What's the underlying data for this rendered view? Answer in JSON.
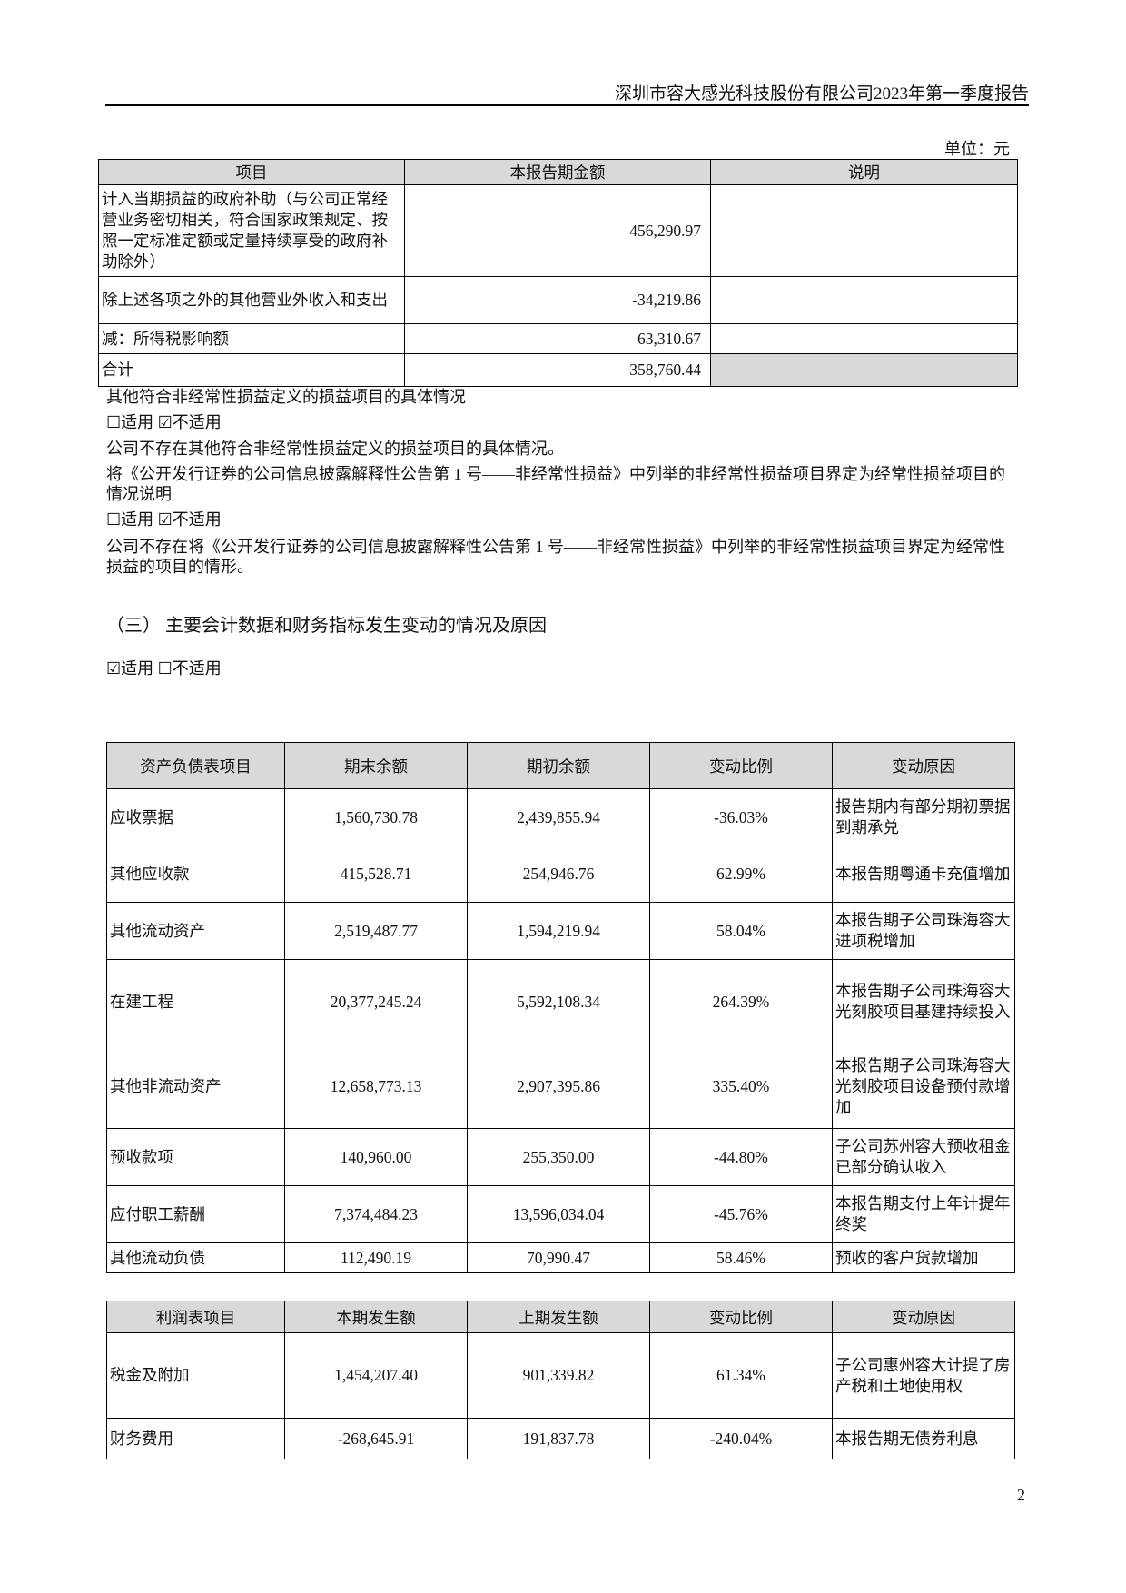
{
  "header": {
    "title": "深圳市容大感光科技股份有限公司2023年第一季度报告"
  },
  "unit_label": "单位：元",
  "nonrecurring_table": {
    "headers": [
      "项目",
      "本报告期金额",
      "说明"
    ],
    "rows": [
      {
        "item": "计入当期损益的政府补助（与公司正常经营业务密切相关，符合国家政策规定、按照一定标准定额或定量持续享受的政府补助除外）",
        "amount": "456,290.97",
        "note": ""
      },
      {
        "item": "除上述各项之外的其他营业外收入和支出",
        "amount": "-34,219.86",
        "note": ""
      },
      {
        "item": "减：所得税影响额",
        "amount": "63,310.67",
        "note": ""
      },
      {
        "item": "合计",
        "amount": "358,760.44",
        "note": ""
      }
    ]
  },
  "paragraphs": {
    "p1": "其他符合非经常性损益定义的损益项目的具体情况",
    "check1": "☐适用 ☑不适用",
    "p2": "公司不存在其他符合非经常性损益定义的损益项目的具体情况。",
    "p3": "将《公开发行证券的公司信息披露解释性公告第 1 号——非经常性损益》中列举的非经常性损益项目界定为经常性损益项目的情况说明",
    "check2": "☐适用 ☑不适用",
    "p4": "公司不存在将《公开发行证券的公司信息披露解释性公告第 1 号——非经常性损益》中列举的非经常性损益项目界定为经常性损益的项目的情形。",
    "section_title": "（三）  主要会计数据和财务指标发生变动的情况及原因",
    "check3": "☑适用 ☐不适用"
  },
  "balance_table": {
    "headers": [
      "资产负债表项目",
      "期末余额",
      "期初余额",
      "变动比例",
      "变动原因"
    ],
    "rows": [
      {
        "item": "应收票据",
        "end": "1,560,730.78",
        "begin": "2,439,855.94",
        "ratio": "-36.03%",
        "reason": "报告期内有部分期初票据到期承兑"
      },
      {
        "item": "其他应收款",
        "end": "415,528.71",
        "begin": "254,946.76",
        "ratio": "62.99%",
        "reason": "本报告期粤通卡充值增加"
      },
      {
        "item": "其他流动资产",
        "end": "2,519,487.77",
        "begin": "1,594,219.94",
        "ratio": "58.04%",
        "reason": "本报告期子公司珠海容大进项税增加"
      },
      {
        "item": "在建工程",
        "end": "20,377,245.24",
        "begin": "5,592,108.34",
        "ratio": "264.39%",
        "reason": "本报告期子公司珠海容大光刻胶项目基建持续投入"
      },
      {
        "item": "其他非流动资产",
        "end": "12,658,773.13",
        "begin": "2,907,395.86",
        "ratio": "335.40%",
        "reason": "本报告期子公司珠海容大光刻胶项目设备预付款增加"
      },
      {
        "item": "预收款项",
        "end": "140,960.00",
        "begin": "255,350.00",
        "ratio": "-44.80%",
        "reason": "子公司苏州容大预收租金已部分确认收入"
      },
      {
        "item": "应付职工薪酬",
        "end": "7,374,484.23",
        "begin": "13,596,034.04",
        "ratio": "-45.76%",
        "reason": "本报告期支付上年计提年终奖"
      },
      {
        "item": "其他流动负债",
        "end": "112,490.19",
        "begin": "70,990.47",
        "ratio": "58.46%",
        "reason": "预收的客户货款增加"
      }
    ]
  },
  "income_table": {
    "headers": [
      "利润表项目",
      "本期发生额",
      "上期发生额",
      "变动比例",
      "变动原因"
    ],
    "rows": [
      {
        "item": "税金及附加",
        "end": "1,454,207.40",
        "begin": "901,339.82",
        "ratio": "61.34%",
        "reason": "子公司惠州容大计提了房产税和土地使用权"
      },
      {
        "item": "财务费用",
        "end": "-268,645.91",
        "begin": "191,837.78",
        "ratio": "-240.04%",
        "reason": "本报告期无债券利息"
      }
    ]
  },
  "page_number": "2"
}
